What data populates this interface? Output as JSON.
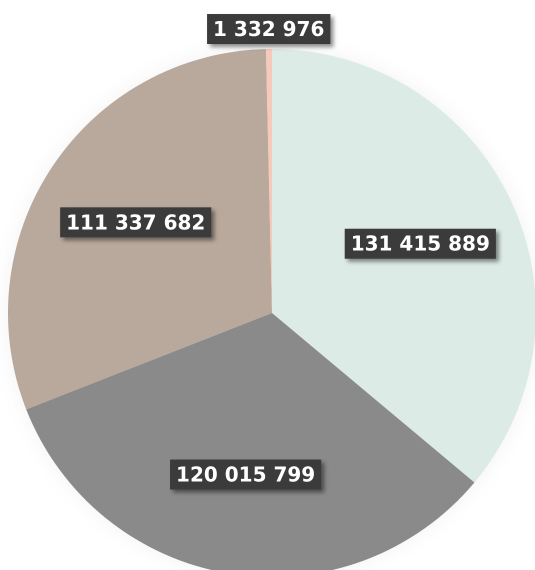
{
  "chart_data": {
    "type": "pie",
    "categories": [
      null,
      null,
      null,
      null
    ],
    "values": [
      131415889,
      120015799,
      111337682,
      1332976
    ],
    "value_labels": [
      "131 415 889",
      "120 015 799",
      "111 337 682",
      "1 332 976"
    ],
    "colors": [
      "#dcebe6",
      "#8a8a8a",
      "#b9a89c",
      "#f6c9bb"
    ]
  }
}
